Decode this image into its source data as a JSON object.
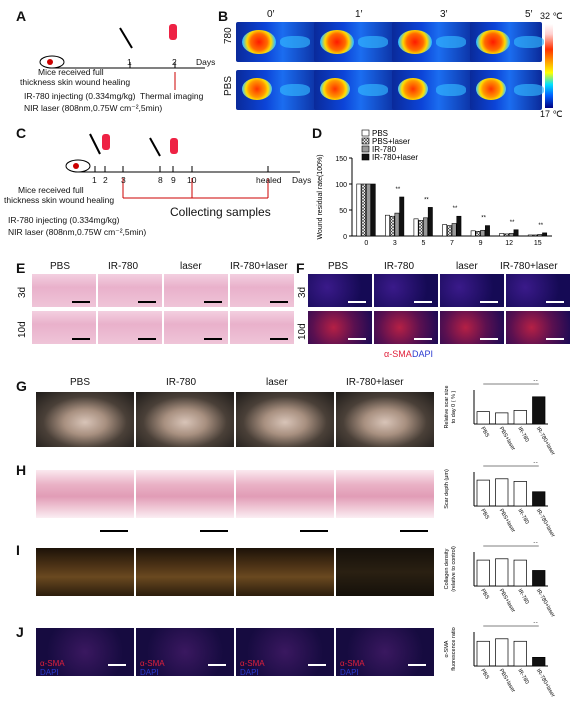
{
  "panel_letters": {
    "A": "A",
    "B": "B",
    "C": "C",
    "D": "D",
    "E": "E",
    "F": "F",
    "G": "G",
    "H": "H",
    "I": "I",
    "J": "J"
  },
  "panelA": {
    "tick1": "1",
    "tick2": "2",
    "days": "Days",
    "mice_line1": "Mice received full",
    "mice_line2": "thickness skin wound healing",
    "thermal": "Thermal imaging",
    "legend_ir": "IR-780 injecting (0.334mg/kg)",
    "legend_nir": "NIR laser (808nm,0.75W cm⁻²,5min)"
  },
  "panelB": {
    "times": [
      "0′",
      "1′",
      "3′",
      "5′"
    ],
    "rows": [
      "780",
      "PBS"
    ],
    "scale_max": "32 ℃",
    "scale_min": "17 ℃"
  },
  "panelC": {
    "ticks": [
      "1",
      "2",
      "3",
      "8",
      "9",
      "10",
      "healed"
    ],
    "days": "Days",
    "mice_line1": "Mice received full",
    "mice_line2": "thickness skin wound healing",
    "collect": "Collecting samples",
    "legend_ir": "IR-780 injecting (0.334mg/kg)",
    "legend_nir": "NIR laser (808nm,0.75W cm⁻²,5min)"
  },
  "chart_data": {
    "type": "bar",
    "ylabel": "Wound residual rate(100%)",
    "categories": [
      "0",
      "3",
      "5",
      "7",
      "9",
      "12",
      "15"
    ],
    "ylim": [
      0,
      150
    ],
    "yticks": [
      "0",
      "50",
      "100",
      "150"
    ],
    "legend_position": "top-left",
    "series": [
      {
        "name": "PBS",
        "values": [
          100,
          40,
          33,
          22,
          10,
          5,
          2
        ]
      },
      {
        "name": "PBS+laser",
        "values": [
          100,
          38,
          30,
          20,
          9,
          4,
          2
        ]
      },
      {
        "name": "IR-780",
        "values": [
          100,
          44,
          35,
          24,
          11,
          5,
          3
        ]
      },
      {
        "name": "IR-780+laser",
        "values": [
          100,
          75,
          55,
          38,
          20,
          12,
          6
        ]
      }
    ],
    "annotations": [
      "**"
    ]
  },
  "panelE": {
    "cols": [
      "PBS",
      "IR-780",
      "laser",
      "IR-780+laser"
    ],
    "rows": [
      "3d",
      "10d"
    ]
  },
  "panelF": {
    "cols": [
      "PBS",
      "IR-780",
      "laser",
      "IR-780+laser"
    ],
    "rows": [
      "3d",
      "10d"
    ],
    "stain1": "α-SMA",
    "stain2": "DAPI"
  },
  "panelG": {
    "cols": [
      "PBS",
      "IR-780",
      "laser",
      "IR-780+laser"
    ],
    "ylabel": "Relative scar size\nto day 0 ( % )",
    "cats": [
      "PBS",
      "PBS+laser",
      "IR-780",
      "IR-780+laser"
    ],
    "sig": "**"
  },
  "panelH": {
    "ylabel": "Scar depth (μm)",
    "cats": [
      "PBS",
      "PBS+laser",
      "IR-780",
      "IR-780+laser"
    ],
    "sig": "**"
  },
  "panelI": {
    "ylabel": "Collagen density\n(relative to control)",
    "cats": [
      "PBS",
      "PBS+laser",
      "IR-780",
      "IR-780+laser"
    ],
    "sig": "**"
  },
  "panelJ": {
    "ylabel": "α-SMA\nfluorescence ratio",
    "cats": [
      "PBS",
      "PBS+laser",
      "IR-780",
      "IR-780+laser"
    ],
    "stain1": "α-SMA",
    "stain2": "DAPI",
    "sig": "**"
  },
  "colors": {
    "thermal_hot": "#ff2200",
    "thermal_cold": "#0a2a9a",
    "he_pink": "#e9b1cb",
    "sma_red": "#e0203a",
    "dapi_blue": "#2a3ad0"
  }
}
